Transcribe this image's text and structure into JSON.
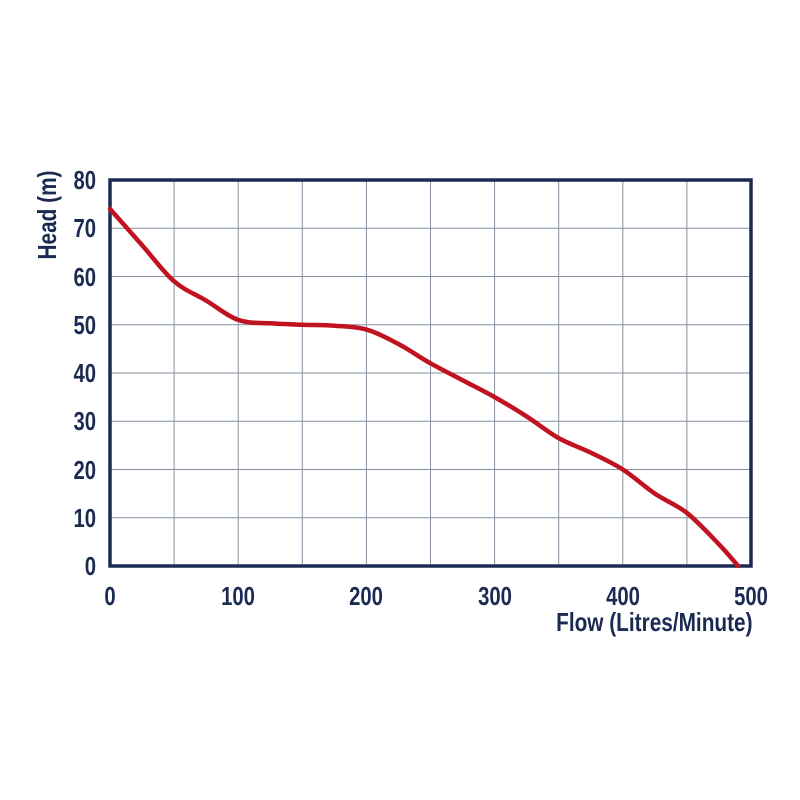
{
  "page": {
    "background": "#ffffff"
  },
  "colors": {
    "axis": "#1b2a52",
    "grid": "#8791a3",
    "text": "#1b2a52",
    "curve": "#c1121f"
  },
  "chart_data": {
    "type": "line",
    "title": "",
    "xlabel": "Flow (Litres/Minute)",
    "ylabel": "Head (m)",
    "xlim": [
      0,
      500
    ],
    "ylim": [
      0,
      80
    ],
    "grid": true,
    "legend_position": "none",
    "x_tick_values": [
      0,
      100,
      200,
      300,
      400,
      500
    ],
    "x_tick_labels": [
      "0",
      "100",
      "200",
      "300",
      "400",
      "500"
    ],
    "x_gridline_values": [
      50,
      100,
      150,
      200,
      250,
      300,
      350,
      400,
      450
    ],
    "y_tick_values": [
      0,
      10,
      20,
      30,
      40,
      50,
      60,
      70,
      80
    ],
    "y_tick_labels": [
      "0",
      "10",
      "20",
      "30",
      "40",
      "50",
      "60",
      "70",
      "80"
    ],
    "y_gridline_values": [
      10,
      20,
      30,
      40,
      50,
      60,
      70
    ],
    "series": [
      {
        "name": "pump-head-curve",
        "color": "#c1121f",
        "x": [
          0,
          25,
          50,
          75,
          100,
          125,
          150,
          175,
          200,
          225,
          250,
          275,
          300,
          325,
          350,
          375,
          400,
          425,
          450,
          475,
          490
        ],
        "y": [
          74,
          66.5,
          59,
          55,
          51,
          50.3,
          50,
          49.8,
          49,
          46,
          42,
          38.5,
          35,
          31,
          26.5,
          23.5,
          20,
          15,
          11,
          4.5,
          0
        ]
      }
    ]
  }
}
